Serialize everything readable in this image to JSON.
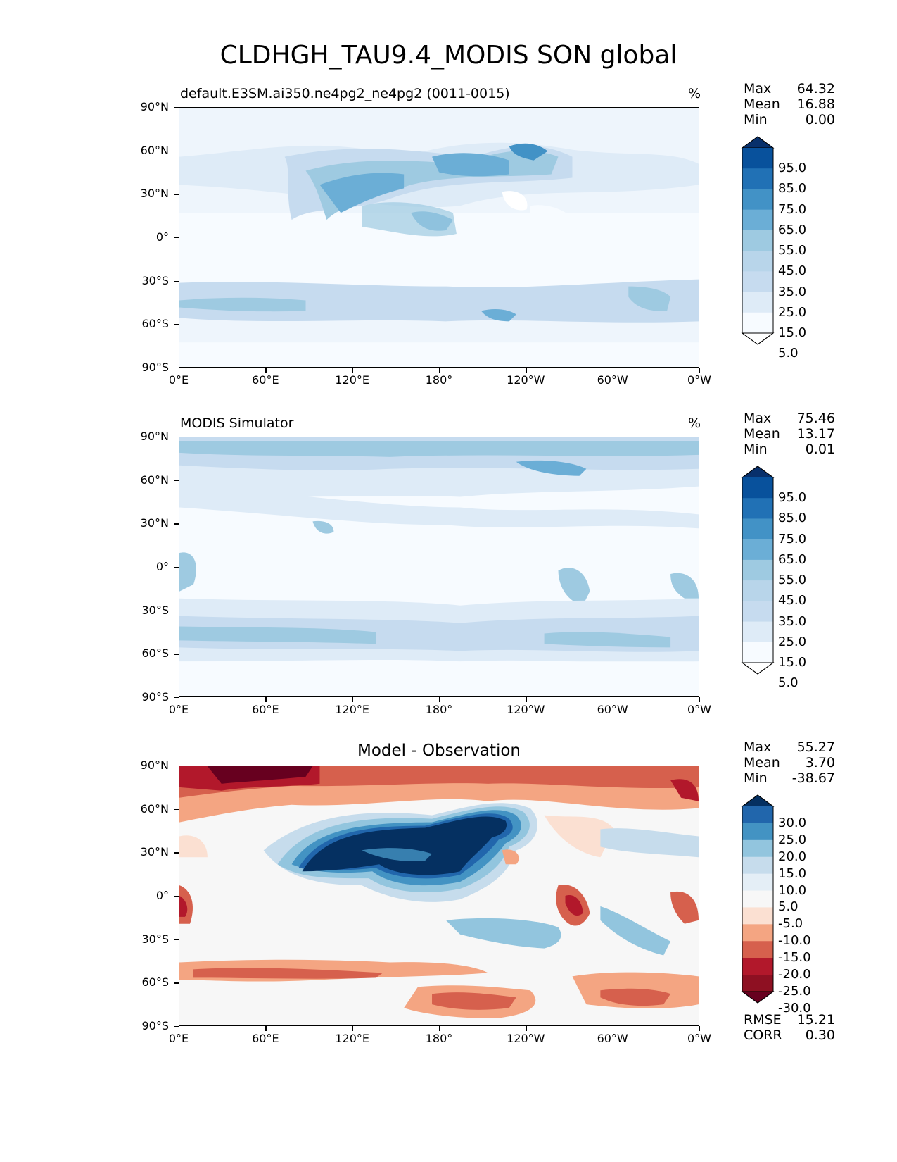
{
  "figure_title": "CLDHGH_TAU9.4_MODIS SON global",
  "axes": {
    "lat_labels": [
      "90°N",
      "60°N",
      "30°N",
      "0°",
      "30°S",
      "60°S",
      "90°S"
    ],
    "lon_labels": [
      "0°E",
      "60°E",
      "120°E",
      "180°",
      "120°W",
      "60°W",
      "0°W"
    ]
  },
  "panels": [
    {
      "id": "test",
      "title": "default.E3SM.ai350.ne4pg2_ne4pg2 (0011-0015)",
      "units": "%",
      "stats": {
        "max_label": "Max",
        "max": "64.32",
        "mean_label": "Mean",
        "mean": "16.88",
        "min_label": "Min",
        "min": "0.00"
      },
      "colorbar": {
        "labels": [
          "95.0",
          "85.0",
          "75.0",
          "65.0",
          "55.0",
          "45.0",
          "35.0",
          "25.0",
          "15.0",
          "5.0"
        ],
        "colors": [
          "#08306b",
          "#08519c",
          "#2171b5",
          "#4292c6",
          "#6baed6",
          "#9ecae1",
          "#b8d5ea",
          "#c6dbef",
          "#deebf7",
          "#f7fbff",
          "#ffffff"
        ]
      }
    },
    {
      "id": "reference",
      "title": "MODIS Simulator",
      "units": "%",
      "stats": {
        "max_label": "Max",
        "max": "75.46",
        "mean_label": "Mean",
        "mean": "13.17",
        "min_label": "Min",
        "min": "0.01"
      },
      "colorbar": {
        "labels": [
          "95.0",
          "85.0",
          "75.0",
          "65.0",
          "55.0",
          "45.0",
          "35.0",
          "25.0",
          "15.0",
          "5.0"
        ],
        "colors": [
          "#08306b",
          "#08519c",
          "#2171b5",
          "#4292c6",
          "#6baed6",
          "#9ecae1",
          "#b8d5ea",
          "#c6dbef",
          "#deebf7",
          "#f7fbff",
          "#ffffff"
        ]
      }
    },
    {
      "id": "difference",
      "title": "Model - Observation",
      "stats": {
        "max_label": "Max",
        "max": "55.27",
        "mean_label": "Mean",
        "mean": "3.70",
        "min_label": "Min",
        "min": "-38.67"
      },
      "extra_stats": {
        "rmse_label": "RMSE",
        "rmse": "15.21",
        "corr_label": "CORR",
        "corr": "0.30"
      },
      "colorbar": {
        "labels": [
          "30.0",
          "25.0",
          "20.0",
          "15.0",
          "10.0",
          "5.0",
          "-5.0",
          "-10.0",
          "-15.0",
          "-20.0",
          "-25.0",
          "-30.0"
        ],
        "colors": [
          "#053061",
          "#2166ac",
          "#4393c3",
          "#92c5de",
          "#c6dcec",
          "#e4eef6",
          "#f7f7f7",
          "#fbe0d2",
          "#f4a582",
          "#d6604d",
          "#b2182b",
          "#8e1022",
          "#67001f"
        ]
      }
    }
  ]
}
